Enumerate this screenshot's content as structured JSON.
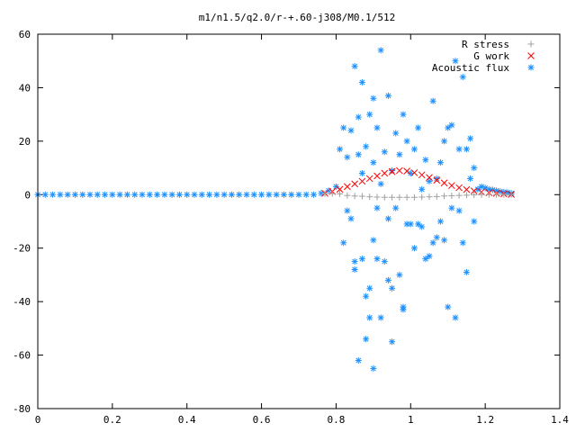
{
  "chart_data": {
    "type": "scatter",
    "title": "m1/n1.5/q2.0/r-+.60-j308/M0.1/512",
    "xlabel": "",
    "ylabel": "",
    "xlim": [
      0,
      1.4
    ],
    "ylim": [
      -80,
      60
    ],
    "x_ticks": [
      "0",
      "0.2",
      "0.4",
      "0.6",
      "0.8",
      "1",
      "1.2",
      "1.4"
    ],
    "y_ticks": [
      "60",
      "40",
      "20",
      "0",
      "-20",
      "-40",
      "-60",
      "-80"
    ],
    "x_tick_values": [
      0,
      0.2,
      0.4,
      0.6,
      0.8,
      1.0,
      1.2,
      1.4
    ],
    "y_tick_values": [
      60,
      40,
      20,
      0,
      -20,
      -40,
      -60,
      -80
    ],
    "grid": false,
    "legend_position": "top-right",
    "series": [
      {
        "name": "R stress",
        "marker": "plus",
        "color": "#a0a0a0",
        "points": [
          [
            0.77,
            0.3
          ],
          [
            0.79,
            0.4
          ],
          [
            0.81,
            0.3
          ],
          [
            0.83,
            -0.3
          ],
          [
            0.85,
            -0.5
          ],
          [
            0.87,
            -0.6
          ],
          [
            0.89,
            -0.8
          ],
          [
            0.91,
            -0.9
          ],
          [
            0.93,
            -1.0
          ],
          [
            0.95,
            -1.0
          ],
          [
            0.97,
            -1.0
          ],
          [
            0.99,
            -1.0
          ],
          [
            1.01,
            -1.0
          ],
          [
            1.03,
            -0.9
          ],
          [
            1.05,
            -0.8
          ],
          [
            1.07,
            -0.7
          ],
          [
            1.09,
            -0.5
          ],
          [
            1.11,
            -0.4
          ],
          [
            1.13,
            -0.3
          ],
          [
            1.15,
            -0.2
          ],
          [
            1.17,
            -0.1
          ],
          [
            1.19,
            0.0
          ],
          [
            1.21,
            0.0
          ],
          [
            1.23,
            0.0
          ],
          [
            1.25,
            0.0
          ],
          [
            1.27,
            0.0
          ]
        ]
      },
      {
        "name": "G work",
        "marker": "cross",
        "color": "#ff0000",
        "points": [
          [
            0.77,
            0.5
          ],
          [
            0.79,
            1.2
          ],
          [
            0.81,
            2.0
          ],
          [
            0.83,
            3.0
          ],
          [
            0.85,
            4.0
          ],
          [
            0.87,
            5.0
          ],
          [
            0.89,
            6.0
          ],
          [
            0.91,
            7.0
          ],
          [
            0.93,
            8.0
          ],
          [
            0.95,
            8.6
          ],
          [
            0.97,
            9.0
          ],
          [
            0.99,
            8.8
          ],
          [
            1.01,
            8.2
          ],
          [
            1.03,
            7.4
          ],
          [
            1.05,
            6.4
          ],
          [
            1.07,
            5.4
          ],
          [
            1.09,
            4.4
          ],
          [
            1.11,
            3.4
          ],
          [
            1.13,
            2.6
          ],
          [
            1.15,
            1.9
          ],
          [
            1.17,
            1.4
          ],
          [
            1.19,
            1.0
          ],
          [
            1.21,
            0.7
          ],
          [
            1.23,
            0.5
          ],
          [
            1.25,
            0.3
          ],
          [
            1.27,
            0.1
          ]
        ]
      },
      {
        "name": "Acoustic flux",
        "marker": "star",
        "color": "#1e90ff",
        "points": [
          [
            0.0,
            0
          ],
          [
            0.02,
            0
          ],
          [
            0.04,
            0
          ],
          [
            0.06,
            0
          ],
          [
            0.08,
            0
          ],
          [
            0.1,
            0
          ],
          [
            0.12,
            0
          ],
          [
            0.14,
            0
          ],
          [
            0.16,
            0
          ],
          [
            0.18,
            0
          ],
          [
            0.2,
            0
          ],
          [
            0.22,
            0
          ],
          [
            0.24,
            0
          ],
          [
            0.26,
            0
          ],
          [
            0.28,
            0
          ],
          [
            0.3,
            0
          ],
          [
            0.32,
            0
          ],
          [
            0.34,
            0
          ],
          [
            0.36,
            0
          ],
          [
            0.38,
            0
          ],
          [
            0.4,
            0
          ],
          [
            0.42,
            0
          ],
          [
            0.44,
            0
          ],
          [
            0.46,
            0
          ],
          [
            0.48,
            0
          ],
          [
            0.5,
            0
          ],
          [
            0.52,
            0
          ],
          [
            0.54,
            0
          ],
          [
            0.56,
            0
          ],
          [
            0.58,
            0
          ],
          [
            0.6,
            0
          ],
          [
            0.62,
            0
          ],
          [
            0.64,
            0
          ],
          [
            0.66,
            0
          ],
          [
            0.68,
            0
          ],
          [
            0.7,
            0
          ],
          [
            0.72,
            0
          ],
          [
            0.74,
            0
          ],
          [
            0.76,
            0.5
          ],
          [
            0.78,
            1.5
          ],
          [
            0.8,
            3.0
          ],
          [
            0.81,
            17.0
          ],
          [
            0.82,
            25.0
          ],
          [
            0.82,
            -18.0
          ],
          [
            0.83,
            14.0
          ],
          [
            0.83,
            -6.0
          ],
          [
            0.84,
            24.0
          ],
          [
            0.84,
            -9.0
          ],
          [
            0.85,
            48.0
          ],
          [
            0.85,
            -25.0
          ],
          [
            0.85,
            -28.0
          ],
          [
            0.86,
            29.0
          ],
          [
            0.86,
            15.0
          ],
          [
            0.86,
            -62.0
          ],
          [
            0.87,
            42.0
          ],
          [
            0.87,
            8.0
          ],
          [
            0.87,
            -24.0
          ],
          [
            0.88,
            18.0
          ],
          [
            0.88,
            -38.0
          ],
          [
            0.88,
            -54.0
          ],
          [
            0.89,
            30.0
          ],
          [
            0.89,
            -46.0
          ],
          [
            0.89,
            -35.0
          ],
          [
            0.9,
            36.0
          ],
          [
            0.9,
            12.0
          ],
          [
            0.9,
            -17.0
          ],
          [
            0.9,
            -65.0
          ],
          [
            0.91,
            25.0
          ],
          [
            0.91,
            -5.0
          ],
          [
            0.91,
            -24.0
          ],
          [
            0.92,
            54.0
          ],
          [
            0.92,
            4.0
          ],
          [
            0.92,
            -46.0
          ],
          [
            0.93,
            16.0
          ],
          [
            0.93,
            -25.0
          ],
          [
            0.94,
            37.0
          ],
          [
            0.94,
            -32.0
          ],
          [
            0.94,
            -9.0
          ],
          [
            0.95,
            9.0
          ],
          [
            0.95,
            -35.0
          ],
          [
            0.95,
            -55.0
          ],
          [
            0.96,
            23.0
          ],
          [
            0.96,
            -5.0
          ],
          [
            0.97,
            -30.0
          ],
          [
            0.97,
            15.0
          ],
          [
            0.98,
            30.0
          ],
          [
            0.98,
            -43.0
          ],
          [
            0.98,
            -42.0
          ],
          [
            0.99,
            20.0
          ],
          [
            0.99,
            -11.0
          ],
          [
            1.0,
            -11.0
          ],
          [
            1.0,
            8.0
          ],
          [
            1.01,
            17.0
          ],
          [
            1.01,
            -20.0
          ],
          [
            1.02,
            -11.0
          ],
          [
            1.02,
            25.0
          ],
          [
            1.03,
            -12.0
          ],
          [
            1.03,
            2.0
          ],
          [
            1.04,
            13.0
          ],
          [
            1.04,
            -24.0
          ],
          [
            1.05,
            -23.0
          ],
          [
            1.05,
            5.0
          ],
          [
            1.06,
            35.0
          ],
          [
            1.06,
            -18.0
          ],
          [
            1.07,
            6.0
          ],
          [
            1.07,
            -16.0
          ],
          [
            1.08,
            12.0
          ],
          [
            1.08,
            -10.0
          ],
          [
            1.09,
            -17.0
          ],
          [
            1.09,
            20.0
          ],
          [
            1.1,
            25.0
          ],
          [
            1.1,
            -42.0
          ],
          [
            1.11,
            26.0
          ],
          [
            1.11,
            -5.0
          ],
          [
            1.12,
            50.0
          ],
          [
            1.12,
            -46.0
          ],
          [
            1.13,
            17.0
          ],
          [
            1.13,
            -6.0
          ],
          [
            1.14,
            44.0
          ],
          [
            1.14,
            -18.0
          ],
          [
            1.15,
            -29.0
          ],
          [
            1.15,
            17.0
          ],
          [
            1.16,
            21.0
          ],
          [
            1.16,
            6.0
          ],
          [
            1.17,
            10.0
          ],
          [
            1.17,
            -10.0
          ],
          [
            1.18,
            2.0
          ],
          [
            1.19,
            3.0
          ],
          [
            1.2,
            2.5
          ],
          [
            1.21,
            2.0
          ],
          [
            1.22,
            1.8
          ],
          [
            1.23,
            1.5
          ],
          [
            1.24,
            1.2
          ],
          [
            1.25,
            1.0
          ],
          [
            1.26,
            0.8
          ],
          [
            1.27,
            0.5
          ]
        ]
      }
    ]
  }
}
